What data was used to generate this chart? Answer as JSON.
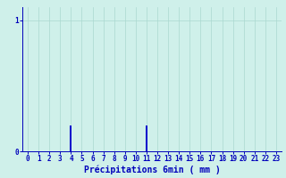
{
  "hours": [
    0,
    1,
    2,
    3,
    4,
    5,
    6,
    7,
    8,
    9,
    10,
    11,
    12,
    13,
    14,
    15,
    16,
    17,
    18,
    19,
    20,
    21,
    22,
    23
  ],
  "values": [
    0,
    0,
    0,
    0,
    0.2,
    0,
    0,
    0,
    0,
    0,
    0,
    0.2,
    0,
    0,
    0,
    0,
    0,
    0,
    0,
    0,
    0,
    0,
    0,
    0
  ],
  "bar_color": "#0000cc",
  "background_color": "#cff0ea",
  "grid_color": "#aad8d0",
  "axis_color": "#0000bb",
  "xlabel": "Précipitations 6min ( mm )",
  "xlabel_fontsize": 7,
  "tick_fontsize": 5.5,
  "ytick_labels": [
    "0",
    "1"
  ],
  "ytick_values": [
    0,
    1
  ],
  "ylim_max": 1.1,
  "xlim": [
    -0.5,
    23.5
  ]
}
